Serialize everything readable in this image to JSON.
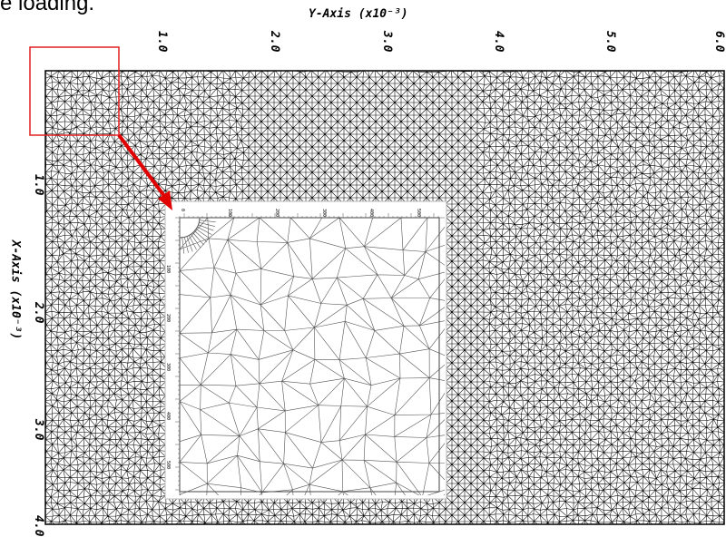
{
  "caption": "e loading.",
  "plot": {
    "y_axis_label": "Y-Axis (x10⁻³)",
    "x_axis_label": "X-Axis (x10⁻³)",
    "y_ticks": [
      "1.0",
      "2.0",
      "3.0",
      "4.0",
      "5.0",
      "6.0"
    ],
    "x_ticks": [
      "1.0",
      "2.0",
      "3.0",
      "4.0"
    ],
    "inset_top_ticks": [
      "0",
      "100",
      "200",
      "300",
      "400",
      "500"
    ],
    "inset_left_ticks": [
      "100",
      "200",
      "300",
      "400",
      "500"
    ]
  },
  "colors": {
    "mesh": "#000000",
    "callout": "#e00000",
    "inset_mesh": "#555555"
  }
}
